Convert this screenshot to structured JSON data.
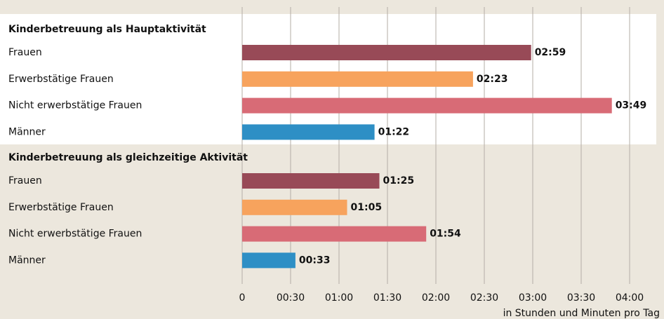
{
  "chart_data": {
    "type": "bar",
    "groups": [
      {
        "name": "Kinderbetreuung als Hauptaktivität",
        "categories": [
          "Frauen",
          "Erwerbstätige Frauen",
          "Nicht erwerbstätige Frauen",
          "Männer"
        ],
        "values": [
          179,
          143,
          229,
          82
        ],
        "value_labels": [
          "02:59",
          "02:23",
          "03:49",
          "01:22"
        ]
      },
      {
        "name": "Kinderbetreuung als gleichzeitige Aktivität",
        "categories": [
          "Frauen",
          "Erwerbstätige Frauen",
          "Nicht erwerbstätige Frauen",
          "Männer"
        ],
        "values": [
          85,
          65,
          114,
          33
        ],
        "value_labels": [
          "01:25",
          "01:05",
          "01:54",
          "00:33"
        ]
      }
    ],
    "colors": [
      "#984a57",
      "#f7a35d",
      "#d86b76",
      "#2e8fc5"
    ],
    "xlim": [
      0,
      240
    ],
    "xticks": [
      0,
      {
        "value": 30,
        "label": "00:30"
      },
      {
        "value": 60,
        "label": "01:00"
      },
      {
        "value": 90,
        "label": "01:30"
      },
      {
        "value": 120,
        "label": "02:00"
      },
      {
        "value": 150,
        "label": "02:30"
      },
      {
        "value": 180,
        "label": "03:00"
      },
      {
        "value": 210,
        "label": "03:30"
      },
      {
        "value": 240,
        "label": "04:00"
      }
    ],
    "xlabel": "in Stunden und Minuten pro Tag",
    "grid": true
  }
}
